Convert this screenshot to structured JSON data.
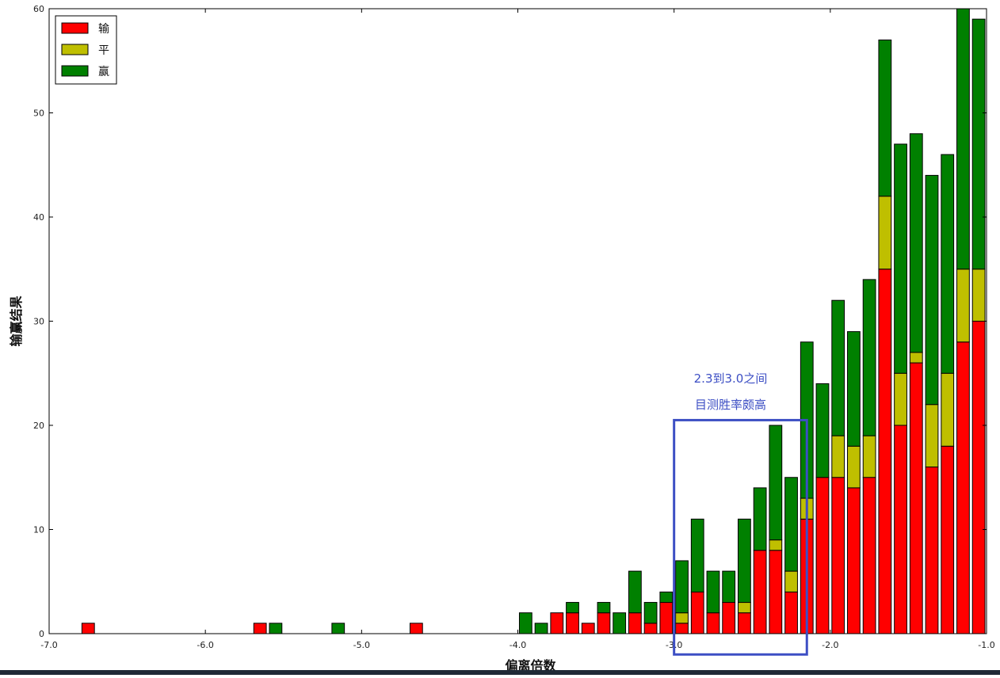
{
  "chart_data": {
    "type": "bar",
    "stacked": true,
    "xlabel": "偏离倍数",
    "ylabel": "输赢结果",
    "xlim": [
      -7.0,
      -1.0
    ],
    "ylim": [
      0,
      60
    ],
    "xticks": [
      -7.0,
      -6.0,
      -5.0,
      -4.0,
      -3.0,
      -2.0,
      -1.0
    ],
    "xtick_labels": [
      "-7.0",
      "-6.0",
      "-5.0",
      "-4.0",
      "-3.0",
      "-2.0",
      "-1.0"
    ],
    "yticks": [
      0,
      10,
      20,
      30,
      40,
      50,
      60
    ],
    "ytick_labels": [
      "0",
      "10",
      "20",
      "30",
      "40",
      "50",
      "60"
    ],
    "bar_width": 0.08,
    "legend_position": "top-left",
    "x": [
      -6.75,
      -5.65,
      -5.55,
      -5.15,
      -4.65,
      -3.95,
      -3.85,
      -3.75,
      -3.65,
      -3.55,
      -3.45,
      -3.35,
      -3.25,
      -3.15,
      -3.05,
      -2.95,
      -2.85,
      -2.75,
      -2.65,
      -2.55,
      -2.45,
      -2.35,
      -2.25,
      -2.15,
      -2.05,
      -1.95,
      -1.85,
      -1.75,
      -1.65,
      -1.55,
      -1.45,
      -1.35,
      -1.25,
      -1.15,
      -1.05
    ],
    "series": [
      {
        "name": "输",
        "color": "#ff0000",
        "values": [
          1,
          1,
          0,
          0,
          1,
          0,
          0,
          2,
          2,
          1,
          2,
          0,
          2,
          1,
          3,
          1,
          4,
          2,
          3,
          2,
          8,
          8,
          4,
          11,
          15,
          15,
          14,
          15,
          35,
          20,
          26,
          16,
          18,
          28,
          30
        ]
      },
      {
        "name": "平",
        "color": "#bfbf00",
        "values": [
          0,
          0,
          0,
          0,
          0,
          0,
          0,
          0,
          0,
          0,
          0,
          0,
          0,
          0,
          0,
          1,
          0,
          0,
          0,
          1,
          0,
          1,
          2,
          2,
          0,
          4,
          4,
          4,
          7,
          5,
          1,
          6,
          7,
          7,
          5
        ]
      },
      {
        "name": "赢",
        "color": "#008000",
        "values": [
          0,
          0,
          1,
          1,
          0,
          2,
          1,
          0,
          1,
          0,
          1,
          2,
          4,
          2,
          1,
          5,
          7,
          4,
          3,
          8,
          6,
          11,
          9,
          15,
          9,
          13,
          11,
          15,
          15,
          22,
          21,
          22,
          21,
          25,
          24
        ]
      }
    ],
    "annotations": [
      {
        "type": "text",
        "lines": [
          "2.3到3.0之间",
          "目测胜率颇高"
        ],
        "color": "#3d4fc4"
      },
      {
        "type": "rect",
        "x_range": [
          -3.0,
          -2.15
        ],
        "y_range": [
          -2.0,
          20.5
        ],
        "color": "#3d4fc4"
      }
    ]
  }
}
